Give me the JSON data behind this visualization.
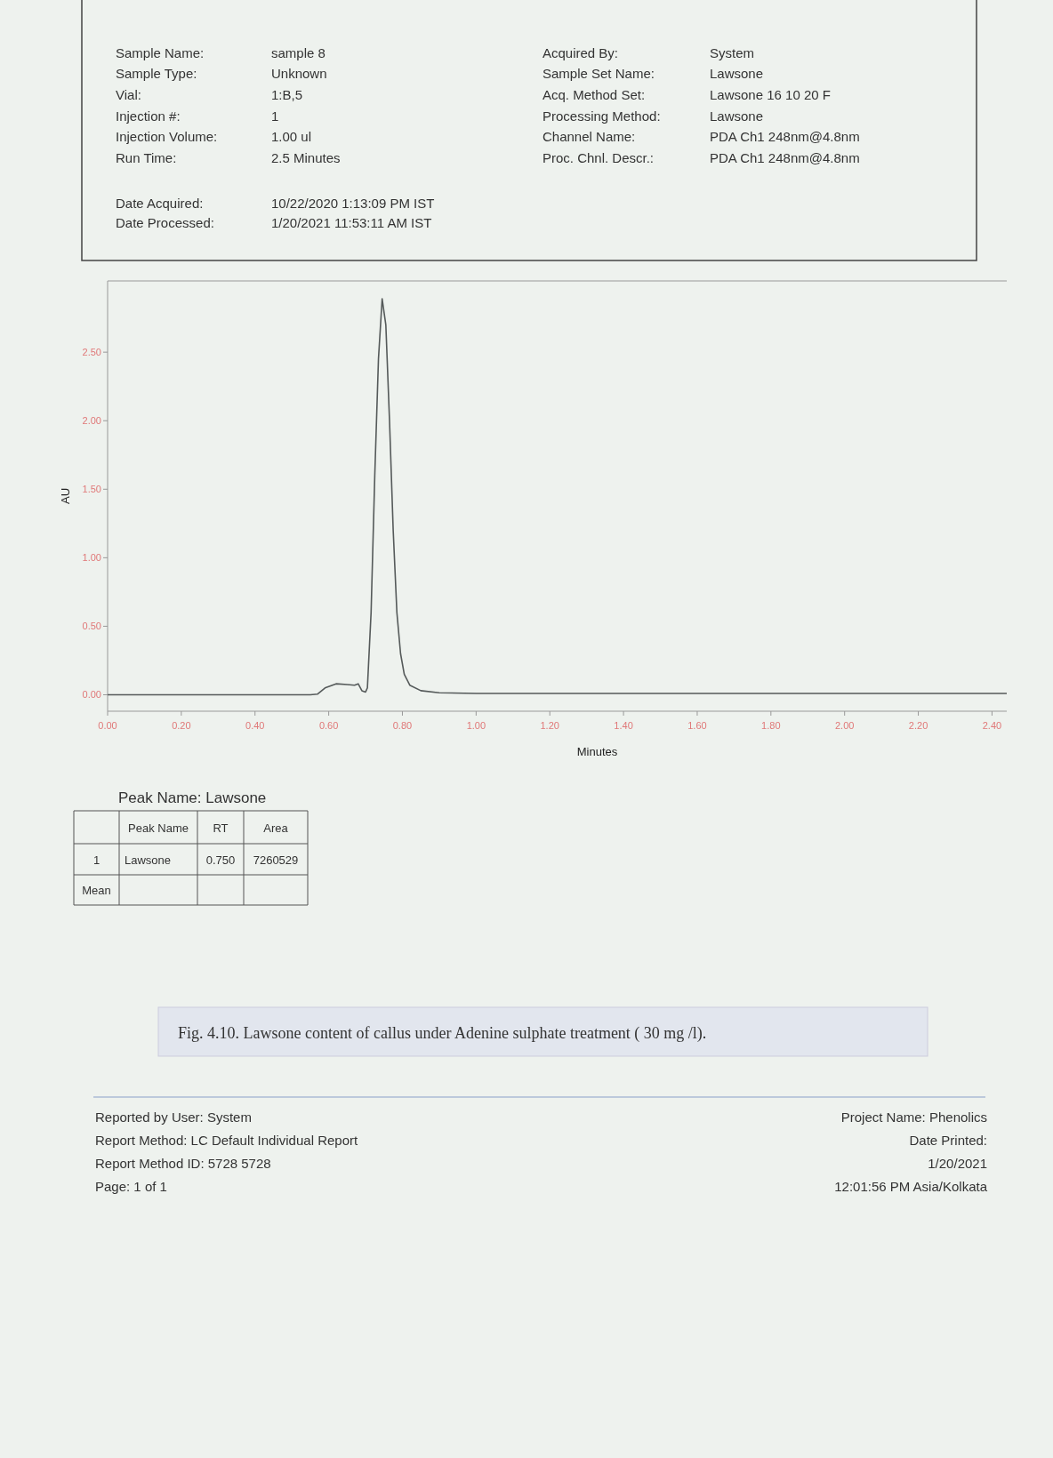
{
  "chart_data": {
    "type": "line",
    "xlabel": "Minutes",
    "ylabel": "AU",
    "x": [
      0,
      0.55,
      0.57,
      0.59,
      0.62,
      0.65,
      0.67,
      0.68,
      0.69,
      0.7,
      0.705,
      0.715,
      0.725,
      0.735,
      0.745,
      0.755,
      0.765,
      0.775,
      0.785,
      0.795,
      0.805,
      0.82,
      0.85,
      0.9,
      1.0,
      2.44
    ],
    "series": [
      {
        "color": "#555a5a",
        "values": [
          0,
          0,
          0.005,
          0.05,
          0.08,
          0.075,
          0.07,
          0.08,
          0.03,
          0.02,
          0.05,
          0.6,
          1.6,
          2.45,
          2.89,
          2.7,
          2.0,
          1.2,
          0.6,
          0.3,
          0.15,
          0.07,
          0.03,
          0.015,
          0.01,
          0.01
        ]
      }
    ],
    "xlim": [
      0,
      2.44
    ],
    "ylim": [
      -0.12,
      3.02
    ],
    "xticks": [
      {
        "value": 0,
        "label": "0.00"
      },
      {
        "value": 0.2,
        "label": "0.20"
      },
      {
        "value": 0.4,
        "label": "0.40"
      },
      {
        "value": 0.6,
        "label": "0.60"
      },
      {
        "value": 0.8,
        "label": "0.80"
      },
      {
        "value": 1.0,
        "label": "1.00"
      },
      {
        "value": 1.2,
        "label": "1.20"
      },
      {
        "value": 1.4,
        "label": "1.40"
      },
      {
        "value": 1.6,
        "label": "1.60"
      },
      {
        "value": 1.8,
        "label": "1.80"
      },
      {
        "value": 2.0,
        "label": "2.00"
      },
      {
        "value": 2.2,
        "label": "2.20"
      },
      {
        "value": 2.4,
        "label": "2.40"
      }
    ],
    "yticks": [
      {
        "value": 0,
        "label": "0.00"
      },
      {
        "value": 0.5,
        "label": "0.50"
      },
      {
        "value": 1.0,
        "label": "1.00"
      },
      {
        "value": 1.5,
        "label": "1.50"
      },
      {
        "value": 2.0,
        "label": "2.00"
      },
      {
        "value": 2.5,
        "label": "2.50"
      }
    ],
    "grid": false,
    "marker": "none",
    "line_style": "solid",
    "annotations": [
      "Sample Name:",
      "sample 8",
      "Sample Type:",
      "Unknown",
      "Vial:",
      "1:B,5",
      "Injection #:",
      "1",
      "Injection Volume:",
      "1.00 ul",
      "Run Time:",
      "2.5 Minutes",
      "Date Acquired:",
      "10/22/2020 1:13:09 PM IST",
      "Date Processed:",
      "1/20/2021 11:53:11 AM IST",
      "Acquired By:",
      "System",
      "Sample Set Name:",
      "Lawsone",
      "Acq. Method Set:",
      "Lawsone 16 10 20 F",
      "Processing Method:",
      "Lawsone",
      "Channel Name:",
      "PDA Ch1 248nm@4.8nm",
      "Proc. Chnl. Descr.:",
      "PDA Ch1 248nm@4.8nm",
      "Peak Name: Lawsone",
      "Peak Name",
      "RT",
      "Area",
      "1",
      "Lawsone",
      "0.750",
      "7260529",
      "Mean",
      "Fig. 4.10.  Lawsone content of callus under  Adenine sulphate treatment  ( 30 mg /l).",
      "Reported by User: System",
      "Report Method: LC Default Individual Report",
      "Report Method ID: 5728 5728",
      "Page: 1 of 1",
      "Project Name:  Phenolics",
      "Date Printed:",
      "1/20/2021",
      "12:01:56 PM Asia/Kolkata"
    ]
  }
}
